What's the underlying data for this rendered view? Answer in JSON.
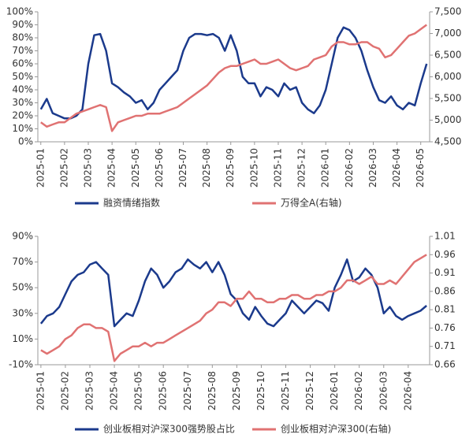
{
  "chart_data": [
    {
      "type": "line",
      "categories": [
        "2025-01",
        null,
        null,
        null,
        "2025-02",
        null,
        null,
        null,
        "2025-03",
        null,
        null,
        null,
        "2025-04",
        null,
        null,
        null,
        "2025-05",
        null,
        null,
        null,
        "2025-06",
        null,
        null,
        null,
        "2025-07",
        null,
        null,
        null,
        "2025-08",
        null,
        null,
        null,
        "2025-09",
        null,
        null,
        null,
        "2025-10",
        null,
        null,
        null,
        "2025-11",
        null,
        null,
        null,
        "2025-12",
        null,
        null,
        null,
        "2026-01",
        null,
        null,
        null,
        "2026-02",
        null,
        null,
        null,
        "2026-03",
        null,
        null,
        null,
        "2026-04",
        null,
        null,
        null,
        "2026-05",
        null
      ],
      "series": [
        {
          "name": "融资情绪指数",
          "color": "#1b3a8c",
          "values": [
            25,
            33,
            22,
            20,
            18,
            18,
            20,
            25,
            60,
            82,
            83,
            70,
            45,
            42,
            38,
            35,
            30,
            32,
            25,
            30,
            40,
            45,
            50,
            55,
            70,
            80,
            83,
            83,
            82,
            83,
            80,
            70,
            82,
            70,
            50,
            45,
            45,
            35,
            42,
            40,
            35,
            45,
            40,
            42,
            30,
            25,
            22,
            28,
            40,
            60,
            80,
            88,
            86,
            80,
            70,
            55,
            42,
            32,
            30,
            35,
            28,
            25,
            30,
            28,
            45,
            60
          ]
        },
        {
          "name": "万得全A(右轴)",
          "color": "#e07272",
          "axis": "y2",
          "values": [
            4950,
            4850,
            4900,
            4950,
            4950,
            5050,
            5150,
            5200,
            5250,
            5300,
            5350,
            5300,
            4750,
            4950,
            5000,
            5050,
            5100,
            5100,
            5150,
            5150,
            5150,
            5200,
            5250,
            5300,
            5400,
            5500,
            5600,
            5700,
            5800,
            5950,
            6100,
            6200,
            6250,
            6250,
            6300,
            6350,
            6400,
            6300,
            6300,
            6350,
            6400,
            6300,
            6200,
            6150,
            6200,
            6250,
            6400,
            6450,
            6500,
            6700,
            6800,
            6800,
            6750,
            6750,
            6800,
            6800,
            6700,
            6650,
            6450,
            6500,
            6650,
            6800,
            6950,
            7000,
            7100,
            7200
          ]
        }
      ],
      "ylim": [
        0,
        100
      ],
      "yticks": [
        {
          "value": 0,
          "label": "0%"
        },
        {
          "value": 10,
          "label": "10%"
        },
        {
          "value": 20,
          "label": "20%"
        },
        {
          "value": 30,
          "label": "30%"
        },
        {
          "value": 40,
          "label": "40%"
        },
        {
          "value": 50,
          "label": "50%"
        },
        {
          "value": 60,
          "label": "60%"
        },
        {
          "value": 70,
          "label": "70%"
        },
        {
          "value": 80,
          "label": "80%"
        },
        {
          "value": 90,
          "label": "90%"
        },
        {
          "value": 100,
          "label": "100%"
        }
      ],
      "y2lim": [
        4500,
        7500
      ],
      "y2ticks": [
        {
          "value": 4500,
          "label": "4,500"
        },
        {
          "value": 5000,
          "label": "5,000"
        },
        {
          "value": 5500,
          "label": "5,500"
        },
        {
          "value": 6000,
          "label": "6,000"
        },
        {
          "value": 6500,
          "label": "6,500"
        },
        {
          "value": 7000,
          "label": "7,000"
        },
        {
          "value": 7500,
          "label": "7,500"
        }
      ],
      "legend": "bottom"
    },
    {
      "type": "line",
      "categories": [
        "2025-01",
        null,
        null,
        null,
        "2025-02",
        null,
        null,
        null,
        "2025-03",
        null,
        null,
        null,
        "2025-04",
        null,
        null,
        null,
        "2025-05",
        null,
        null,
        null,
        "2025-06",
        null,
        null,
        null,
        "2025-07",
        null,
        null,
        null,
        "2025-08",
        null,
        null,
        null,
        "2025-09",
        null,
        null,
        null,
        "2025-10",
        null,
        null,
        null,
        "2025-11",
        null,
        null,
        null,
        "2025-12",
        null,
        null,
        null,
        "2026-01",
        null,
        null,
        null,
        "2026-02",
        null,
        null,
        null,
        "2026-03",
        null,
        null,
        null,
        "2026-04",
        null,
        null,
        null
      ],
      "series": [
        {
          "name": "创业板相对沪深300强势股占比",
          "color": "#1b3a8c",
          "values": [
            22,
            28,
            30,
            35,
            45,
            55,
            60,
            62,
            68,
            70,
            65,
            60,
            20,
            25,
            30,
            28,
            40,
            55,
            65,
            60,
            50,
            55,
            62,
            65,
            72,
            68,
            65,
            70,
            62,
            70,
            60,
            45,
            40,
            30,
            25,
            35,
            28,
            22,
            20,
            25,
            30,
            40,
            35,
            30,
            35,
            40,
            38,
            32,
            50,
            60,
            72,
            55,
            58,
            65,
            60,
            50,
            30,
            35,
            28,
            25,
            28,
            30,
            32,
            36
          ]
        },
        {
          "name": "创业板相对沪深300(右轴)",
          "color": "#e07272",
          "axis": "y2",
          "values": [
            0.7,
            0.69,
            0.7,
            0.71,
            0.73,
            0.74,
            0.76,
            0.77,
            0.77,
            0.76,
            0.76,
            0.75,
            0.67,
            0.69,
            0.7,
            0.71,
            0.71,
            0.72,
            0.71,
            0.72,
            0.72,
            0.73,
            0.74,
            0.75,
            0.76,
            0.77,
            0.78,
            0.8,
            0.81,
            0.83,
            0.83,
            0.82,
            0.84,
            0.84,
            0.86,
            0.84,
            0.84,
            0.83,
            0.83,
            0.84,
            0.84,
            0.85,
            0.85,
            0.84,
            0.84,
            0.85,
            0.85,
            0.86,
            0.86,
            0.87,
            0.89,
            0.89,
            0.88,
            0.89,
            0.9,
            0.88,
            0.88,
            0.89,
            0.88,
            0.9,
            0.92,
            0.94,
            0.95,
            0.96
          ]
        }
      ],
      "ylim": [
        -10,
        90
      ],
      "yticks": [
        {
          "value": -10,
          "label": "-10%"
        },
        {
          "value": 10,
          "label": "10%"
        },
        {
          "value": 30,
          "label": "30%"
        },
        {
          "value": 50,
          "label": "50%"
        },
        {
          "value": 70,
          "label": "70%"
        },
        {
          "value": 90,
          "label": "90%"
        }
      ],
      "y2lim": [
        0.66,
        1.01
      ],
      "y2ticks": [
        0.66,
        0.71,
        0.76,
        0.81,
        0.86,
        0.91,
        0.96,
        1.01
      ],
      "legend": "bottom"
    }
  ]
}
